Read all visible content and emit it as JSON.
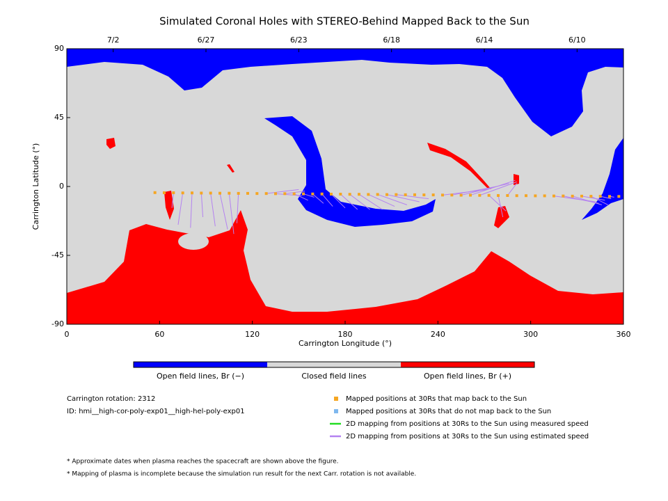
{
  "chart_data": {
    "type": "map",
    "title": "Simulated Coronal Holes with STEREO-Behind Mapped Back to the Sun",
    "xlabel": "Carrington Longitude (°)",
    "ylabel": "Carrington Latitude (°)",
    "xlim": [
      0,
      360
    ],
    "ylim": [
      -90,
      90
    ],
    "xticks": [
      0,
      60,
      120,
      180,
      240,
      300,
      360
    ],
    "yticks": [
      -90,
      -45,
      0,
      45,
      90
    ],
    "top_ticks": [
      {
        "value": 30,
        "label": "7/2"
      },
      {
        "value": 90,
        "label": "6/27"
      },
      {
        "value": 150,
        "label": "6/23"
      },
      {
        "value": 210,
        "label": "6/18"
      },
      {
        "value": 270,
        "label": "6/14"
      },
      {
        "value": 330,
        "label": "6/10"
      }
    ],
    "series": [
      {
        "name": "Mapped positions at 30Rs that map back to the Sun",
        "color": "#f5a623",
        "marker": "square",
        "x": [
          57,
          63,
          69,
          75,
          81,
          87,
          93,
          99,
          105,
          111,
          117,
          123,
          129,
          135,
          141,
          147,
          153,
          159,
          165,
          171,
          177,
          183,
          189,
          195,
          201,
          207,
          213,
          219,
          225,
          231,
          237,
          243,
          249,
          255,
          261,
          267,
          273,
          279,
          285,
          291,
          297,
          303,
          309,
          315,
          321,
          327,
          333,
          339,
          345,
          351,
          357
        ],
        "y": [
          -4.0,
          -4.1,
          -4.1,
          -4.2,
          -4.2,
          -4.3,
          -4.3,
          -4.4,
          -4.4,
          -4.5,
          -4.5,
          -4.6,
          -4.6,
          -4.7,
          -4.7,
          -4.8,
          -4.8,
          -4.9,
          -4.9,
          -5.0,
          -5.0,
          -5.1,
          -5.1,
          -5.2,
          -5.2,
          -5.3,
          -5.3,
          -5.4,
          -5.4,
          -5.5,
          -5.5,
          -5.6,
          -5.6,
          -5.7,
          -5.7,
          -5.8,
          -5.8,
          -5.9,
          -5.9,
          -6.0,
          -6.0,
          -6.1,
          -6.1,
          -6.2,
          -6.2,
          -6.3,
          -6.3,
          -6.4,
          -6.4,
          -6.5,
          -6.5
        ]
      },
      {
        "name": "Mapped positions at 30Rs that do not map back to the Sun",
        "color": "#7fb8ee",
        "marker": "square",
        "x": [],
        "y": []
      },
      {
        "name": "2D mapping from positions at 30Rs to the Sun using measured speed",
        "color": "#22dd22",
        "marker": "line",
        "x": [],
        "y": []
      },
      {
        "name": "2D mapping from positions at 30Rs to the Sun using estimated speed",
        "color": "#b482f0",
        "marker": "line",
        "x": [
          null,
          null,
          68,
          72,
          80,
          88,
          96,
          104,
          108,
          110,
          null,
          null,
          150,
          152,
          154,
          156,
          160,
          166,
          172,
          180,
          188,
          196,
          204,
          212,
          220,
          228,
          234,
          null,
          null,
          null,
          null,
          272,
          278,
          286,
          290,
          291,
          284,
          282,
          291,
          null,
          null,
          null,
          null,
          342,
          344,
          346,
          348,
          350,
          352,
          354,
          null
        ],
        "y": [
          null,
          null,
          -14,
          -25,
          -27,
          -20,
          -26,
          -28,
          -31,
          -24,
          null,
          null,
          -2,
          -6,
          -3,
          -9,
          -7,
          -11,
          -13,
          -14,
          -15,
          -15,
          -15,
          -13,
          -12,
          -10,
          -8,
          null,
          null,
          null,
          null,
          -2,
          0,
          2,
          4,
          3,
          -16,
          -20,
          2,
          null,
          null,
          null,
          null,
          -10,
          -11,
          -12,
          -9,
          -12,
          -8,
          -7,
          null
        ]
      }
    ],
    "colorbar": [
      {
        "label": "Open field lines, Br (−)",
        "color": "#0000ff"
      },
      {
        "label": "Closed field lines",
        "color": "#d8d8d8"
      },
      {
        "label": "Open field lines, Br (+)",
        "color": "#ff0000"
      }
    ],
    "info": [
      "Carrington rotation: 2312",
      "ID: hmi__high-cor-poly-exp01__high-hel-poly-exp01"
    ],
    "notes": [
      "* Approximate dates when plasma reaches the spacecraft are shown above the figure.",
      "* Mapping of plasma is incomplete because the simulation run result for the next Carr. rotation is not available."
    ]
  }
}
